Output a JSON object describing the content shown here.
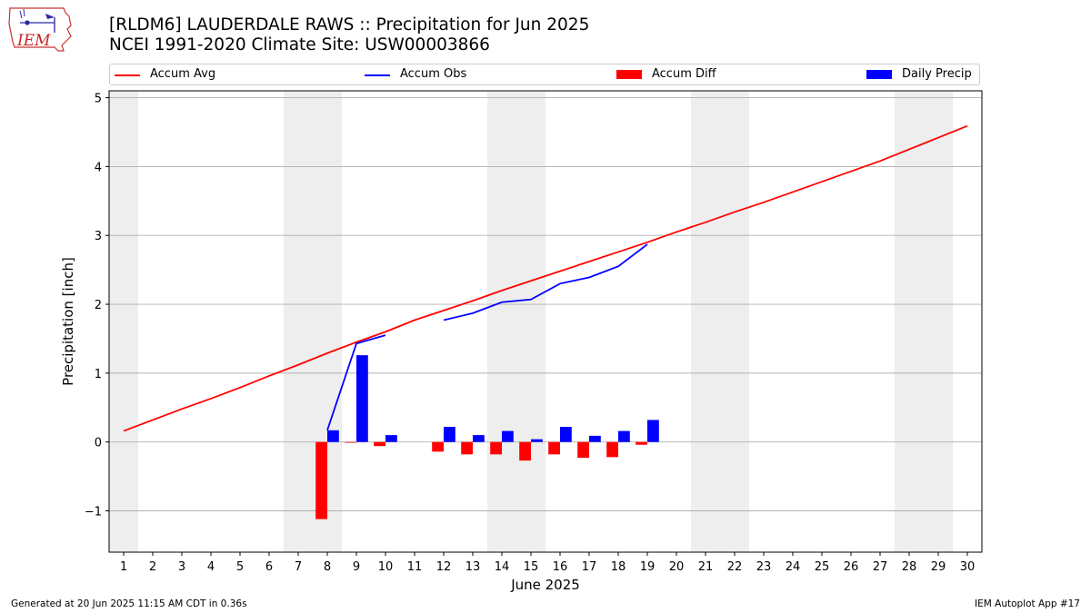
{
  "title": {
    "line1": "[RLDM6] LAUDERDALE RAWS :: Precipitation for Jun 2025",
    "line2": "NCEI 1991-2020 Climate Site: USW00003866"
  },
  "logo": {
    "text": "IEM"
  },
  "footer": {
    "left": "Generated at 20 Jun 2025 11:15 AM CDT in 0.36s",
    "right": "IEM Autoplot App #17"
  },
  "chart_data": {
    "type": "line",
    "xlabel": "June 2025",
    "ylabel": "Precipitation [inch]",
    "x": [
      1,
      2,
      3,
      4,
      5,
      6,
      7,
      8,
      9,
      10,
      11,
      12,
      13,
      14,
      15,
      16,
      17,
      18,
      19,
      20,
      21,
      22,
      23,
      24,
      25,
      26,
      27,
      28,
      29,
      30
    ],
    "xlim": [
      0.5,
      30.5
    ],
    "ylim": [
      -1.6,
      5.1
    ],
    "yticks": [
      -1,
      0,
      1,
      2,
      3,
      4,
      5
    ],
    "ytick_labels": [
      "−1",
      "0",
      "1",
      "2",
      "3",
      "4",
      "5"
    ],
    "grid": "horizontal",
    "weekend_shading": [
      [
        0.5,
        1.5
      ],
      [
        6.5,
        8.5
      ],
      [
        13.5,
        15.5
      ],
      [
        20.5,
        22.5
      ],
      [
        27.5,
        29.5
      ]
    ],
    "legend": [
      "Accum Avg",
      "Accum Obs",
      "Accum Diff",
      "Daily Precip"
    ],
    "legend_position": "top",
    "colors": {
      "avg": "#ff0000",
      "obs": "#0000ff",
      "diff": "#ff0000",
      "daily": "#0000ff",
      "weekend": "#eeeeee",
      "grid": "#b0b0b0"
    },
    "series": [
      {
        "name": "Accum Avg",
        "kind": "line",
        "x": [
          1,
          2,
          3,
          4,
          5,
          6,
          7,
          8,
          9,
          10,
          11,
          12,
          13,
          14,
          15,
          16,
          17,
          18,
          19,
          20,
          21,
          22,
          23,
          24,
          25,
          26,
          27,
          28,
          29,
          30
        ],
        "values": [
          0.16,
          0.32,
          0.48,
          0.63,
          0.79,
          0.96,
          1.12,
          1.29,
          1.45,
          1.6,
          1.77,
          1.91,
          2.05,
          2.2,
          2.34,
          2.48,
          2.62,
          2.76,
          2.9,
          3.05,
          3.19,
          3.34,
          3.48,
          3.63,
          3.78,
          3.93,
          4.08,
          4.25,
          4.42,
          4.59
        ]
      },
      {
        "name": "Accum Obs",
        "kind": "line",
        "segments": [
          {
            "x": [
              8,
              9,
              10
            ],
            "values": [
              0.17,
              1.43,
              1.55
            ]
          },
          {
            "x": [
              12,
              13,
              14,
              15,
              16,
              17,
              18,
              19
            ],
            "values": [
              1.77,
              1.87,
              2.03,
              2.07,
              2.3,
              2.39,
              2.55,
              2.87
            ]
          }
        ]
      },
      {
        "name": "Accum Diff",
        "kind": "bar",
        "x": [
          8,
          9,
          10,
          12,
          13,
          14,
          15,
          16,
          17,
          18,
          19
        ],
        "values": [
          -1.12,
          -0.01,
          -0.06,
          -0.14,
          -0.18,
          -0.18,
          -0.27,
          -0.18,
          -0.23,
          -0.22,
          -0.04
        ]
      },
      {
        "name": "Daily Precip",
        "kind": "bar",
        "x": [
          8,
          9,
          10,
          12,
          13,
          14,
          15,
          16,
          17,
          18,
          19
        ],
        "values": [
          0.17,
          1.26,
          0.1,
          0.22,
          0.1,
          0.16,
          0.04,
          0.22,
          0.09,
          0.16,
          0.32
        ]
      }
    ]
  }
}
